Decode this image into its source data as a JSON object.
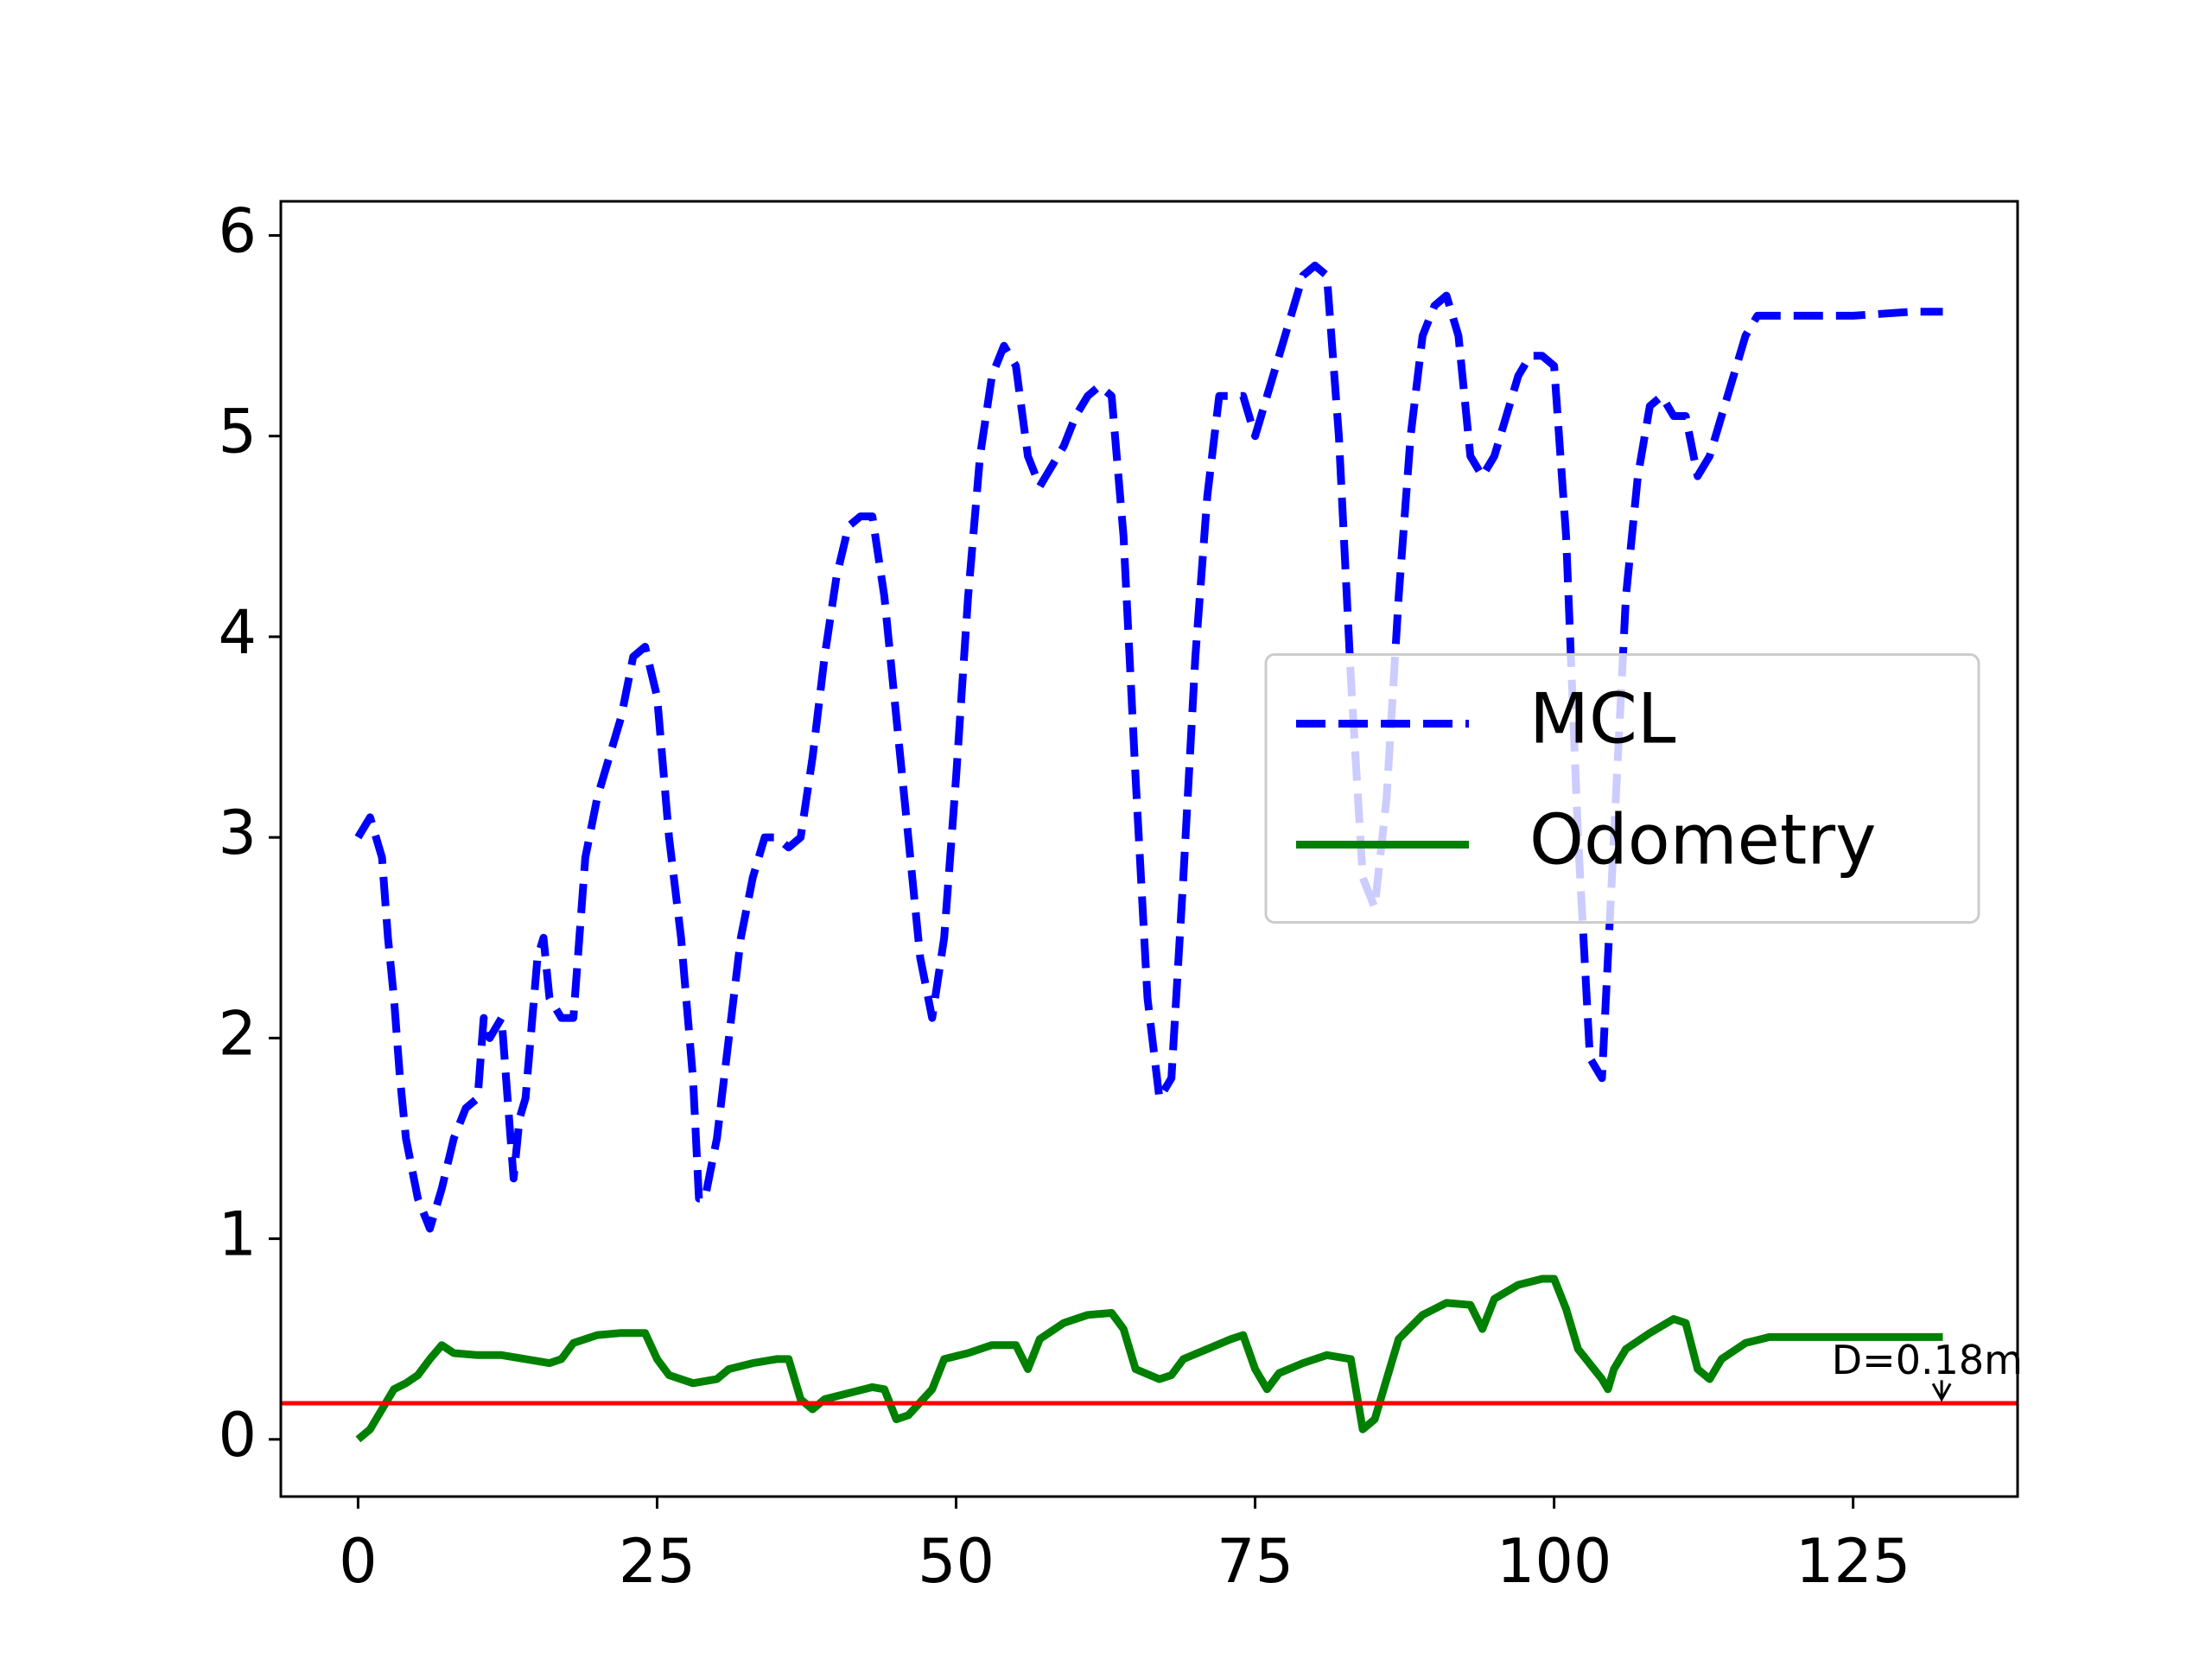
{
  "chart_data": {
    "type": "line",
    "xlim": [
      -6.46,
      138.75
    ],
    "ylim": [
      -0.285,
      6.17
    ],
    "xticks": [
      0,
      25,
      50,
      75,
      100,
      125
    ],
    "yticks": [
      0,
      1,
      2,
      3,
      4,
      5,
      6
    ],
    "grid": false,
    "legend": "center right",
    "series": [
      {
        "name": "MCL",
        "color": "#0000ff",
        "dash": true,
        "x": [
          0,
          1,
          2,
          2.5,
          3,
          3.5,
          4,
          5,
          6,
          7,
          8,
          9,
          10,
          10.5,
          11,
          12,
          12.5,
          13,
          13.5,
          14,
          15,
          15.5,
          16,
          17,
          18,
          19,
          20,
          21,
          22,
          23,
          24,
          25,
          26,
          27,
          28,
          28.5,
          29,
          30,
          31,
          32,
          33,
          34,
          35,
          36,
          37,
          38,
          39,
          40,
          41,
          42,
          43,
          44,
          45,
          46,
          47,
          48,
          49,
          50,
          51,
          52,
          53,
          54,
          55,
          56,
          57,
          58,
          59,
          60,
          61,
          62,
          63,
          64,
          65,
          66,
          67,
          68,
          69,
          70,
          71,
          72,
          73,
          74,
          75,
          76,
          77,
          78,
          79,
          80,
          81,
          82,
          83,
          84,
          85,
          86,
          87,
          88,
          89,
          90,
          91,
          92,
          93,
          94,
          95,
          96,
          97,
          98,
          99,
          100,
          101,
          102,
          103,
          104,
          105,
          106,
          107,
          108,
          109,
          110,
          111,
          112,
          113,
          114,
          115,
          116,
          117,
          120,
          125,
          130,
          132.5
        ],
        "values": [
          3.0,
          3.1,
          2.9,
          2.5,
          2.2,
          1.8,
          1.5,
          1.2,
          1.05,
          1.25,
          1.5,
          1.65,
          1.7,
          2.1,
          2.0,
          2.1,
          1.7,
          1.3,
          1.6,
          1.7,
          2.4,
          2.5,
          2.2,
          2.1,
          2.1,
          2.9,
          3.2,
          3.4,
          3.6,
          3.9,
          3.95,
          3.7,
          3.0,
          2.5,
          1.8,
          1.2,
          1.2,
          1.5,
          2.0,
          2.5,
          2.8,
          3.0,
          3.0,
          2.95,
          3.0,
          3.4,
          3.9,
          4.3,
          4.55,
          4.6,
          4.6,
          4.2,
          3.6,
          3.0,
          2.4,
          2.1,
          2.5,
          3.3,
          4.2,
          4.9,
          5.3,
          5.45,
          5.35,
          4.9,
          4.75,
          4.85,
          4.95,
          5.1,
          5.2,
          5.25,
          5.2,
          4.5,
          3.3,
          2.2,
          1.7,
          1.8,
          2.8,
          3.9,
          4.7,
          5.2,
          5.2,
          5.2,
          5.0,
          5.2,
          5.4,
          5.6,
          5.8,
          5.85,
          5.8,
          5.0,
          3.8,
          2.8,
          2.65,
          3.2,
          4.2,
          5.0,
          5.5,
          5.65,
          5.7,
          5.5,
          4.9,
          4.8,
          4.9,
          5.1,
          5.3,
          5.4,
          5.4,
          5.35,
          4.5,
          3.0,
          1.9,
          1.8,
          3.0,
          4.2,
          4.8,
          5.15,
          5.2,
          5.1,
          5.1,
          4.8,
          4.9,
          5.1,
          5.3,
          5.5,
          5.6,
          5.6,
          5.6,
          5.62,
          5.62
        ]
      },
      {
        "name": "Odometry",
        "color": "#008000",
        "dash": false,
        "x": [
          0,
          1,
          2,
          3,
          4,
          5,
          6,
          7,
          8,
          10,
          12,
          14,
          16,
          17,
          18,
          20,
          22,
          24,
          25,
          26,
          28,
          30,
          31,
          33,
          35,
          36,
          37,
          38,
          39,
          41,
          43,
          44,
          45,
          46,
          48,
          49,
          51,
          53,
          55,
          56,
          57,
          59,
          61,
          63,
          64,
          65,
          67,
          68,
          69,
          71,
          73,
          74,
          75,
          76,
          77,
          79,
          81,
          83,
          84,
          85,
          86,
          87,
          89,
          91,
          93,
          94,
          95,
          97,
          99,
          100,
          101,
          102,
          104,
          104.5,
          105,
          106,
          108,
          110,
          111,
          112,
          113,
          114,
          116,
          118,
          125,
          132.5
        ],
        "values": [
          0,
          0.05,
          0.15,
          0.25,
          0.28,
          0.32,
          0.4,
          0.47,
          0.43,
          0.42,
          0.42,
          0.4,
          0.38,
          0.4,
          0.48,
          0.52,
          0.53,
          0.53,
          0.4,
          0.32,
          0.28,
          0.3,
          0.35,
          0.38,
          0.4,
          0.4,
          0.2,
          0.15,
          0.2,
          0.23,
          0.26,
          0.25,
          0.1,
          0.12,
          0.25,
          0.4,
          0.43,
          0.47,
          0.47,
          0.35,
          0.5,
          0.58,
          0.62,
          0.63,
          0.55,
          0.35,
          0.3,
          0.32,
          0.4,
          0.45,
          0.5,
          0.52,
          0.35,
          0.25,
          0.33,
          0.38,
          0.42,
          0.4,
          0.05,
          0.1,
          0.3,
          0.5,
          0.62,
          0.68,
          0.67,
          0.55,
          0.7,
          0.77,
          0.8,
          0.8,
          0.65,
          0.45,
          0.3,
          0.25,
          0.35,
          0.45,
          0.53,
          0.6,
          0.58,
          0.35,
          0.3,
          0.4,
          0.48,
          0.51,
          0.51,
          0.51
        ]
      }
    ],
    "hlines": [
      {
        "y": 0.18,
        "color": "#ff0000"
      }
    ],
    "annotations": [
      {
        "text": "D=0.18m",
        "x": 123.2,
        "y": 0.38,
        "arrow_to": [
          132.4,
          0.2
        ]
      }
    ]
  }
}
